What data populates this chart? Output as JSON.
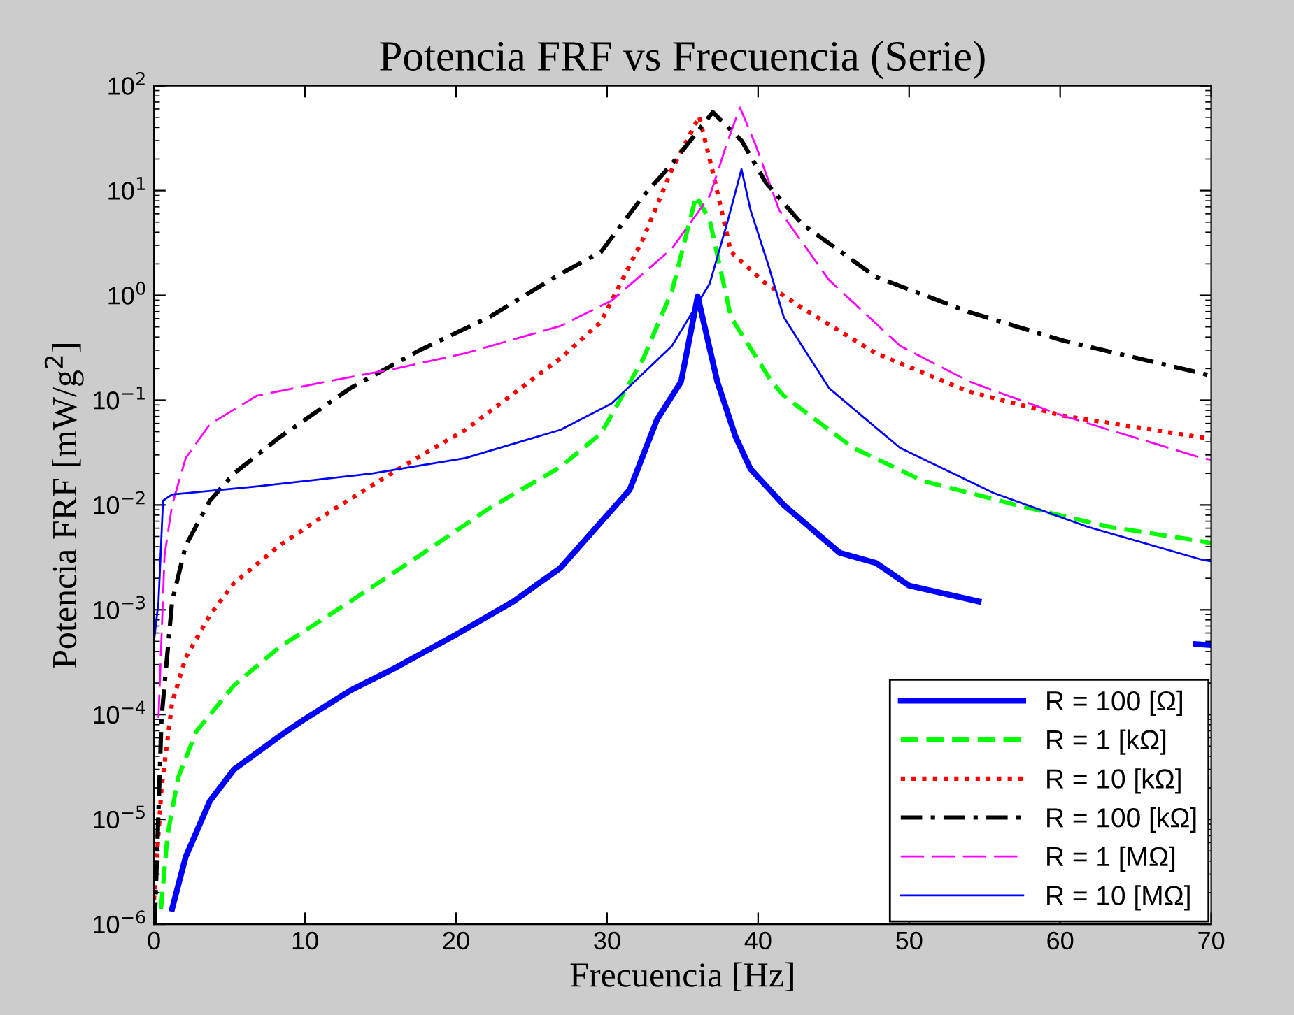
{
  "chart_data": {
    "type": "line",
    "title": "Potencia FRF vs Frecuencia (Serie)",
    "xlabel": "Frecuencia [Hz]",
    "ylabel": "Potencia FRF [mW/g$^{2}$]",
    "log": "y",
    "xlim": [
      0,
      70
    ],
    "xticks": [
      0,
      10,
      20,
      30,
      40,
      50,
      60,
      70
    ],
    "ylim": [
      1e-06,
      100
    ],
    "yticks": [
      {
        "value": 1e-06,
        "label": "10$^{−6}$"
      },
      {
        "value": 1e-05,
        "label": "10$^{−5}$"
      },
      {
        "value": 0.0001,
        "label": "10$^{−4}$"
      },
      {
        "value": 0.001,
        "label": "10$^{−3}$"
      },
      {
        "value": 0.01,
        "label": "10$^{−2}$"
      },
      {
        "value": 0.1,
        "label": "10$^{−1}$"
      },
      {
        "value": 1,
        "label": "10$^{0}$"
      },
      {
        "value": 10,
        "label": "10$^{1}$"
      },
      {
        "value": 100,
        "label": "10$^{2}$"
      }
    ],
    "grid": false,
    "legend": "bottom right",
    "marker": "none",
    "series": [
      {
        "name": "R = 100 [Ω]",
        "color": "#0000ff",
        "line_style": "solid",
        "x": [
          1.2,
          2.1,
          3.7,
          5.3,
          8.3,
          9.9,
          13,
          16,
          20.1,
          23.8,
          26.9,
          31.5,
          33.3,
          34.9,
          36,
          37.3,
          38.5,
          39.5,
          41.7,
          45.4,
          47.8,
          50,
          54.6,
          58,
          62,
          66,
          69,
          70
        ],
        "values": [
          1.4e-06,
          4.4e-06,
          1.5e-05,
          3e-05,
          6.2e-05,
          8.9e-05,
          0.00017,
          0.00028,
          0.00059,
          0.0012,
          0.0025,
          0.014,
          0.065,
          0.15,
          0.98,
          0.15,
          0.045,
          0.022,
          0.01,
          0.0035,
          0.0028,
          0.0017,
          0.0012,
          null,
          null,
          null,
          0.00047,
          0.00046
        ]
      },
      {
        "name": "R = 1 [kΩ]",
        "color": "#00ff00",
        "line_style": "dashed",
        "x": [
          0.46,
          0.9,
          1.6,
          2.8,
          5.3,
          8.3,
          13,
          17.6,
          22.2,
          26.9,
          29.6,
          32.4,
          34.3,
          35.9,
          36.8,
          38.2,
          40.9,
          41.7,
          46.3,
          50.9,
          57.1,
          63.2,
          69.4,
          70
        ],
        "values": [
          1.4e-06,
          7.1e-06,
          2.5e-05,
          6.9e-05,
          0.00019,
          0.00044,
          0.0012,
          0.0033,
          0.0093,
          0.023,
          0.048,
          0.25,
          1.1,
          8.9,
          5.2,
          0.62,
          0.15,
          0.11,
          0.035,
          0.017,
          0.01,
          0.0062,
          0.0045,
          0.0043
        ]
      },
      {
        "name": "R = 10 [kΩ]",
        "color": "#ff0000",
        "line_style": "dotted",
        "x": [
          0,
          0.5,
          1.2,
          2.1,
          3.7,
          5.3,
          8.3,
          12,
          16.4,
          20.6,
          26.9,
          29.6,
          32.4,
          34.3,
          36.1,
          37,
          38.2,
          40.5,
          42.9,
          47.8,
          54,
          60.2,
          69.4,
          70
        ],
        "values": [
          1.7e-06,
          2e-05,
          0.00013,
          0.00035,
          0.00089,
          0.0018,
          0.0041,
          0.0093,
          0.023,
          0.052,
          0.25,
          0.56,
          3.5,
          16,
          51,
          15,
          2.6,
          1.3,
          0.76,
          0.28,
          0.12,
          0.071,
          0.044,
          0.043
        ]
      },
      {
        "name": "R = 100 [kΩ]",
        "color": "#000000",
        "line_style": "dashdot",
        "x": [
          0.05,
          0.5,
          1.2,
          2.1,
          3.7,
          5.3,
          8.3,
          13,
          17.6,
          22.2,
          26.9,
          29.6,
          32.4,
          34.3,
          37,
          38.9,
          40.5,
          42.9,
          47.8,
          54,
          60.2,
          69.4,
          70
        ],
        "values": [
          1e-06,
          9.3e-05,
          0.0012,
          0.0041,
          0.011,
          0.02,
          0.044,
          0.13,
          0.3,
          0.62,
          1.6,
          2.6,
          8.9,
          18,
          56,
          30,
          12,
          4.8,
          1.5,
          0.69,
          0.37,
          0.18,
          0.17
        ]
      },
      {
        "name": "R = 1 [MΩ]",
        "color": "#ff00ff",
        "line_style": "longdash",
        "x": [
          0.3,
          0.7,
          1.2,
          2.1,
          3.7,
          6.8,
          11.4,
          16,
          20.6,
          26.9,
          30.3,
          34.3,
          36.8,
          38,
          38.8,
          39.8,
          41.4,
          44.7,
          49.4,
          54,
          60.2,
          69.4,
          70
        ],
        "values": [
          9.3e-05,
          0.0033,
          0.01,
          0.028,
          0.059,
          0.11,
          0.15,
          0.2,
          0.28,
          0.51,
          0.89,
          2.8,
          8.9,
          30,
          62,
          28,
          6.5,
          1.4,
          0.33,
          0.15,
          0.071,
          0.028,
          0.027
        ]
      },
      {
        "name": "R = 10 [MΩ]",
        "color": "#0000ff",
        "line_style": "solid",
        "x": [
          0,
          0.3,
          0.6,
          1.2,
          6.8,
          14.5,
          20.6,
          26.9,
          30.3,
          34.3,
          36.8,
          38,
          38.9,
          39.5,
          40.7,
          41.7,
          44.7,
          49.4,
          55.6,
          61.8,
          69.4,
          70
        ],
        "values": [
          0.0005,
          0.0012,
          0.011,
          0.0126,
          0.015,
          0.02,
          0.028,
          0.052,
          0.093,
          0.33,
          1.3,
          5.2,
          16,
          6.5,
          1.9,
          0.62,
          0.13,
          0.035,
          0.013,
          0.0062,
          0.003,
          0.0029
        ]
      }
    ]
  }
}
